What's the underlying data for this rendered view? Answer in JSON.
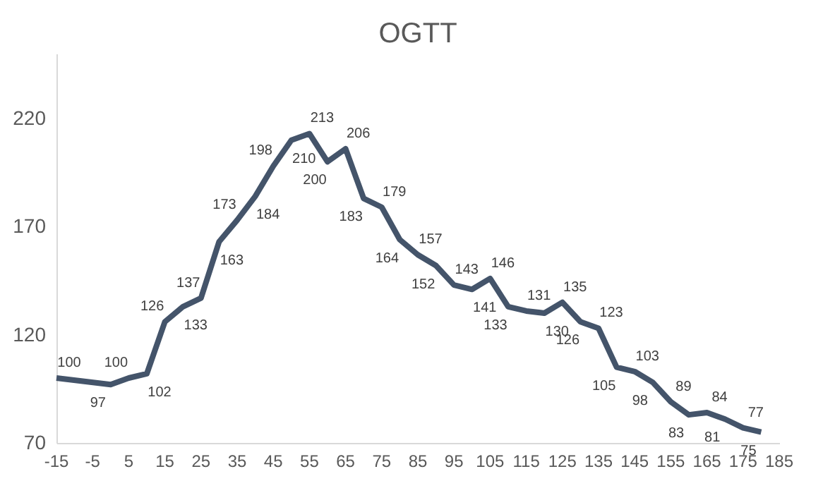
{
  "chart_data": {
    "type": "line",
    "title": "OGTT",
    "x": [
      -15,
      0,
      5,
      10,
      15,
      20,
      25,
      30,
      35,
      40,
      45,
      50,
      55,
      60,
      65,
      70,
      75,
      80,
      85,
      90,
      95,
      100,
      105,
      110,
      115,
      120,
      125,
      130,
      135,
      140,
      145,
      150,
      155,
      160,
      165,
      170,
      175,
      180
    ],
    "series": [
      {
        "color": "#44546a",
        "values": [
          100,
          97,
          100,
          102,
          126,
          133,
          137,
          163,
          173,
          184,
          198,
          210,
          213,
          200,
          206,
          183,
          179,
          164,
          157,
          152,
          143,
          141,
          146,
          133,
          131,
          130,
          135,
          126,
          123,
          105,
          103,
          98,
          89,
          83,
          84,
          81,
          77,
          75
        ]
      }
    ],
    "xlim": [
      -15,
      185
    ],
    "xticks": [
      -15,
      -5,
      5,
      15,
      25,
      35,
      45,
      55,
      65,
      75,
      85,
      95,
      105,
      115,
      125,
      135,
      145,
      155,
      165,
      175,
      185
    ],
    "ylim": [
      70,
      250
    ],
    "yticks": [
      70,
      120,
      170,
      220
    ],
    "data_labels": true,
    "grid": false,
    "legend": false,
    "marker": "none",
    "line_style": "solid"
  }
}
